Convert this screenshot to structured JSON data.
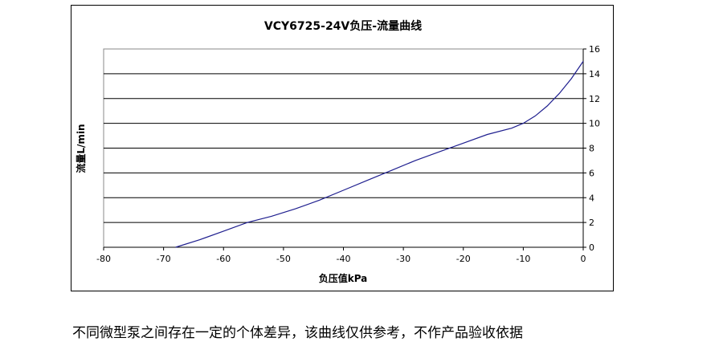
{
  "chart_data": {
    "type": "line",
    "title": "VCY6725-24V负压-流量曲线",
    "xlabel": "负压值kPa",
    "ylabel": "流量L/min",
    "xlim": [
      -80,
      0
    ],
    "ylim": [
      0,
      16
    ],
    "x_ticks": [
      "-80",
      "-70",
      "-60",
      "-50",
      "-40",
      "-30",
      "-20",
      "-10",
      "0"
    ],
    "y_ticks": [
      "0",
      "2",
      "4",
      "6",
      "8",
      "10",
      "12",
      "14",
      "16"
    ],
    "y_axis_position": "right",
    "grid": "horizontal",
    "legend": "none",
    "line_color": "#1f1f8f",
    "series": [
      {
        "x": [
          -68,
          -64,
          -60,
          -56,
          -52,
          -48,
          -44,
          -40,
          -36,
          -32,
          -28,
          -24,
          -20,
          -16,
          -12,
          -10,
          -8,
          -6,
          -4,
          -2,
          0
        ],
        "y": [
          0,
          0.6,
          1.3,
          2.0,
          2.5,
          3.1,
          3.8,
          4.6,
          5.4,
          6.2,
          7.0,
          7.7,
          8.4,
          9.1,
          9.6,
          10.0,
          10.6,
          11.4,
          12.4,
          13.6,
          15.0
        ]
      }
    ]
  },
  "caption": "不同微型泵之间存在一定的个体差异，该曲线仅供参考，不作产品验收依据"
}
